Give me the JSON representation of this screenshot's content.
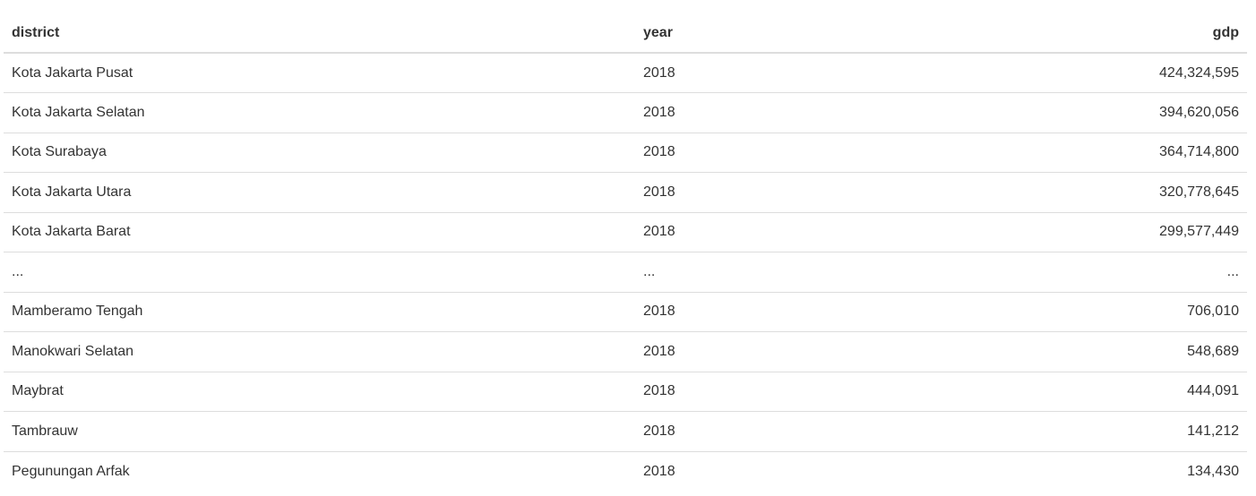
{
  "table": {
    "columns": [
      "district",
      "year",
      "gdp"
    ],
    "rows": [
      {
        "district": "Kota Jakarta Pusat",
        "year": "2018",
        "gdp": "424,324,595"
      },
      {
        "district": "Kota Jakarta Selatan",
        "year": "2018",
        "gdp": "394,620,056"
      },
      {
        "district": "Kota Surabaya",
        "year": "2018",
        "gdp": "364,714,800"
      },
      {
        "district": "Kota Jakarta Utara",
        "year": "2018",
        "gdp": "320,778,645"
      },
      {
        "district": "Kota Jakarta Barat",
        "year": "2018",
        "gdp": "299,577,449"
      },
      {
        "district": "...",
        "year": "...",
        "gdp": "..."
      },
      {
        "district": "Mamberamo Tengah",
        "year": "2018",
        "gdp": "706,010"
      },
      {
        "district": "Manokwari Selatan",
        "year": "2018",
        "gdp": "548,689"
      },
      {
        "district": "Maybrat",
        "year": "2018",
        "gdp": "444,091"
      },
      {
        "district": "Tambrauw",
        "year": "2018",
        "gdp": "141,212"
      },
      {
        "district": "Pegunungan Arfak",
        "year": "2018",
        "gdp": "134,430"
      }
    ]
  }
}
